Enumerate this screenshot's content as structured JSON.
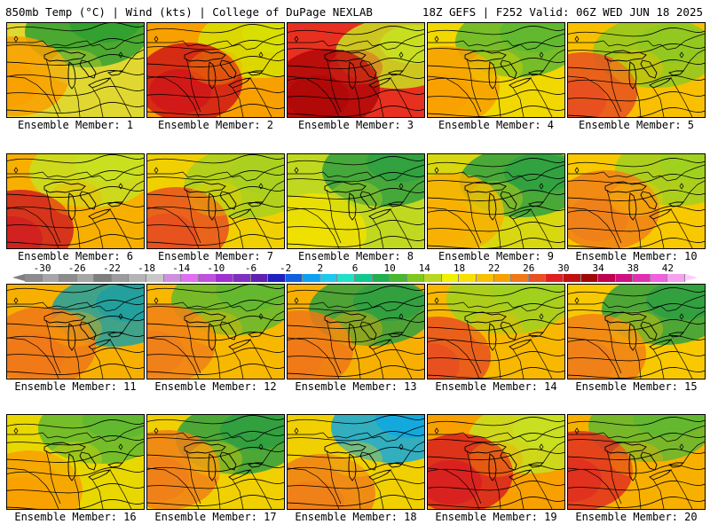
{
  "header": {
    "left": "850mb Temp (°C) | Wind (kts) | College of DuPage NEXLAB",
    "right": "18Z GEFS | F252 Valid: 06Z WED JUN 18 2025"
  },
  "colorbar": {
    "tick_labels": [
      "-30",
      "-26",
      "-22",
      "-18",
      "-14",
      "-10",
      "-6",
      "-2",
      "2",
      "6",
      "10",
      "14",
      "18",
      "22",
      "26",
      "30",
      "34",
      "38",
      "42"
    ],
    "min": -32,
    "max": 44,
    "step": 2,
    "colors": [
      "#8c8c8c",
      "#a6a6a6",
      "#8c8c8c",
      "#a6a6a6",
      "#7f7f7f",
      "#9c9c9c",
      "#b4b4b4",
      "#c8c8c8",
      "#d090e0",
      "#e070f0",
      "#c050e0",
      "#a030d0",
      "#8030c0",
      "#6020b0",
      "#2020c0",
      "#1060e0",
      "#10a0f0",
      "#20c8f0",
      "#20e0c8",
      "#10c890",
      "#20b050",
      "#48b830",
      "#80c820",
      "#b8d820",
      "#f0f000",
      "#f8e000",
      "#f8c000",
      "#f8a000",
      "#f07818",
      "#e85020",
      "#e02020",
      "#c01010",
      "#a00808",
      "#c00050",
      "#d01080",
      "#e030b0",
      "#f060e0",
      "#f8a0f0"
    ],
    "left_arrow_color": "#7f7f7f",
    "right_arrow_color": "#ffccff"
  },
  "panel_label_prefix": "Ensemble Member:",
  "members": [
    {
      "label": "Ensemble Member: 1",
      "base": "#e0d830",
      "hot": "#f8a000",
      "cool": "#30a030"
    },
    {
      "label": "Ensemble Member: 2",
      "base": "#f8a000",
      "hot": "#d01818",
      "cool": "#d8e000"
    },
    {
      "label": "Ensemble Member: 3",
      "base": "#e83020",
      "hot": "#b00808",
      "cool": "#c8e020"
    },
    {
      "label": "Ensemble Member: 4",
      "base": "#f0d800",
      "hot": "#f8a000",
      "cool": "#60b830"
    },
    {
      "label": "Ensemble Member: 5",
      "base": "#f8c000",
      "hot": "#e85020",
      "cool": "#90c820"
    },
    {
      "label": "Ensemble Member: 6",
      "base": "#f8b000",
      "hot": "#d02020",
      "cool": "#c8e020"
    },
    {
      "label": "Ensemble Member: 7",
      "base": "#f0d000",
      "hot": "#e85020",
      "cool": "#a8d020"
    },
    {
      "label": "Ensemble Member: 8",
      "base": "#c0d820",
      "hot": "#f0e000",
      "cool": "#30a040"
    },
    {
      "label": "Ensemble Member: 9",
      "base": "#d8d810",
      "hot": "#f8b000",
      "cool": "#30a040"
    },
    {
      "label": "Ensemble Member: 10",
      "base": "#f8c800",
      "hot": "#f08018",
      "cool": "#a0d020"
    },
    {
      "label": "Ensemble Member: 11",
      "base": "#f8b000",
      "hot": "#f07818",
      "cool": "#20a0a0"
    },
    {
      "label": "Ensemble Member: 12",
      "base": "#f8b800",
      "hot": "#f08018",
      "cool": "#60b830"
    },
    {
      "label": "Ensemble Member: 13",
      "base": "#f8b000",
      "hot": "#f07818",
      "cool": "#30a040"
    },
    {
      "label": "Ensemble Member: 14",
      "base": "#f8b800",
      "hot": "#e85020",
      "cool": "#a0d020"
    },
    {
      "label": "Ensemble Member: 15",
      "base": "#f8c800",
      "hot": "#f08018",
      "cool": "#30a040"
    },
    {
      "label": "Ensemble Member: 16",
      "base": "#e8d800",
      "hot": "#f8a000",
      "cool": "#60b830"
    },
    {
      "label": "Ensemble Member: 17",
      "base": "#f0d000",
      "hot": "#f08018",
      "cool": "#30a040"
    },
    {
      "label": "Ensemble Member: 18",
      "base": "#f0d000",
      "hot": "#f08018",
      "cool": "#10a8e0"
    },
    {
      "label": "Ensemble Member: 19",
      "base": "#f8a000",
      "hot": "#d82020",
      "cool": "#c8e020"
    },
    {
      "label": "Ensemble Member: 20",
      "base": "#f8b000",
      "hot": "#e03020",
      "cool": "#60b830"
    }
  ]
}
